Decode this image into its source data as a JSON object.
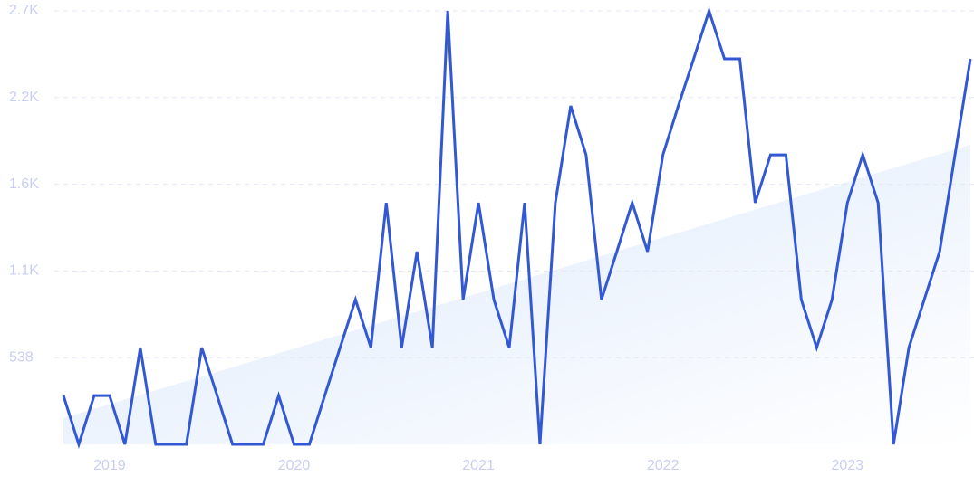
{
  "chart_data": {
    "type": "line",
    "categories": [
      null,
      null,
      null,
      "2019",
      null,
      null,
      null,
      null,
      null,
      null,
      null,
      null,
      null,
      null,
      null,
      "2020",
      null,
      null,
      null,
      null,
      null,
      null,
      null,
      null,
      null,
      null,
      null,
      "2021",
      null,
      null,
      null,
      null,
      null,
      null,
      null,
      null,
      null,
      null,
      null,
      "2022",
      null,
      null,
      null,
      null,
      null,
      null,
      null,
      null,
      null,
      null,
      null,
      "2023",
      null,
      null,
      null,
      null,
      null,
      null,
      null,
      null
    ],
    "series": [
      {
        "color": "#3358d4",
        "values": [
          303,
          0,
          303,
          303,
          0,
          601,
          0,
          0,
          0,
          601,
          303,
          0,
          0,
          0,
          303,
          0,
          0,
          303,
          601,
          899,
          601,
          1500,
          601,
          1197,
          601,
          2692,
          899,
          1500,
          899,
          601,
          1500,
          0,
          1500,
          2102,
          1798,
          899,
          1197,
          1500,
          1197,
          1798,
          2102,
          2394,
          2692,
          2394,
          2394,
          1500,
          1798,
          1798,
          899,
          601,
          899,
          1500,
          1798,
          1500,
          0,
          601,
          899,
          1197,
          1798,
          2394
        ]
      }
    ],
    "trend": {
      "color": "#dbe8fb",
      "values": [
        163,
        1860
      ]
    },
    "ylim": [
      0,
      2692
    ],
    "yticks": [
      538,
      {
        "value": 1077,
        "label": "1.1K"
      },
      {
        "value": 1615,
        "label": "1.6K"
      },
      {
        "value": 2154,
        "label": "2.2K"
      },
      {
        "value": 2692,
        "label": "2.7K"
      }
    ],
    "grid": true
  }
}
